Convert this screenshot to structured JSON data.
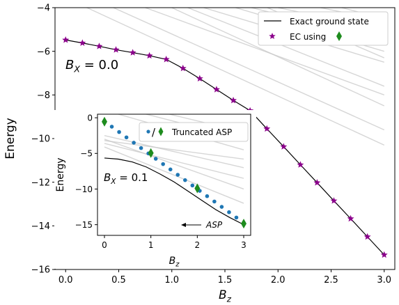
{
  "chart_data": [
    {
      "type": "line",
      "xlabel_main": "B",
      "xlabel_sub": "z",
      "ylabel": "Energy",
      "xlim": [
        -0.1,
        3.1
      ],
      "ylim": [
        -16,
        -4
      ],
      "xticks": [
        0.0,
        0.5,
        1.0,
        1.5,
        2.0,
        2.5,
        3.0
      ],
      "xtick_labels": [
        "0.0",
        "0.5",
        "1.0",
        "1.5",
        "2.0",
        "2.5",
        "3.0"
      ],
      "yticks": [
        -4,
        -6,
        -8,
        -10,
        -12,
        -14,
        -16
      ],
      "ytick_labels": [
        "−4",
        "−6",
        "−8",
        "−10",
        "−12",
        "−14",
        "−16"
      ],
      "annotation": "B_X = 0.0",
      "annotation_parts": {
        "main": "B",
        "sub": "X",
        "rest": " = 0.0"
      },
      "legend": {
        "placement": "upper right",
        "entries": [
          "Exact ground state",
          "EC using"
        ]
      },
      "series": [
        {
          "name": "Exact ground state",
          "style": "line",
          "color": "#000000",
          "x": [
            0.0,
            0.158,
            0.316,
            0.474,
            0.632,
            0.789,
            0.947,
            1.105,
            1.263,
            1.421,
            1.579,
            1.737,
            1.895,
            2.053,
            2.211,
            2.368,
            2.526,
            2.684,
            2.842,
            3.0
          ],
          "y": [
            -5.48,
            -5.62,
            -5.77,
            -5.93,
            -6.06,
            -6.2,
            -6.37,
            -6.78,
            -7.25,
            -7.75,
            -8.25,
            -8.72,
            -9.55,
            -10.37,
            -11.2,
            -12.02,
            -12.85,
            -13.67,
            -14.5,
            -15.33
          ]
        },
        {
          "name": "EC using",
          "style": "marker",
          "marker": "star",
          "color": "#8b008b",
          "x": [
            0.0,
            0.158,
            0.316,
            0.474,
            0.632,
            0.789,
            0.947,
            1.105,
            1.263,
            1.421,
            1.579,
            1.737,
            1.895,
            2.053,
            2.211,
            2.368,
            2.526,
            2.684,
            2.842,
            3.0
          ],
          "y": [
            -5.48,
            -5.62,
            -5.77,
            -5.93,
            -6.06,
            -6.2,
            -6.37,
            -6.78,
            -7.25,
            -7.75,
            -8.25,
            -8.72,
            -9.55,
            -10.37,
            -11.2,
            -12.02,
            -12.85,
            -13.67,
            -14.5,
            -15.33
          ]
        }
      ],
      "background_lines": [
        {
          "x": [
            1.3,
            3.0
          ],
          "y": [
            -4.0,
            -6.5
          ]
        },
        {
          "x": [
            1.6,
            3.0
          ],
          "y": [
            -4.0,
            -6.0
          ]
        },
        {
          "x": [
            2.0,
            3.0
          ],
          "y": [
            -4.0,
            -5.0
          ]
        },
        {
          "x": [
            2.4,
            3.0
          ],
          "y": [
            -4.0,
            -4.6
          ]
        },
        {
          "x": [
            1.0,
            3.0
          ],
          "y": [
            -4.0,
            -8.5
          ]
        },
        {
          "x": [
            1.15,
            3.0
          ],
          "y": [
            -4.0,
            -7.6
          ]
        },
        {
          "x": [
            0.2,
            3.0
          ],
          "y": [
            -4.0,
            -10.3
          ]
        },
        {
          "x": [
            0.45,
            3.0
          ],
          "y": [
            -4.0,
            -9.6
          ]
        },
        {
          "x": [
            0.75,
            3.0
          ],
          "y": [
            -4.0,
            -8.0
          ]
        },
        {
          "x": [
            1.75,
            3.0
          ],
          "y": [
            -4.0,
            -5.5
          ]
        },
        {
          "x": [
            2.6,
            3.0
          ],
          "y": [
            -4.0,
            -4.5
          ]
        },
        {
          "x": [
            1.9,
            3.0
          ],
          "y": [
            -4.0,
            -6.3
          ]
        }
      ],
      "legend_diamond_color": "#1e8c1e"
    },
    {
      "type": "scatter",
      "xlabel_main": "B",
      "xlabel_sub": "z",
      "ylabel": "Energy",
      "xlim": [
        -0.15,
        3.15
      ],
      "ylim": [
        -16.5,
        0.5
      ],
      "xticks": [
        0,
        1,
        2,
        3
      ],
      "xtick_labels": [
        "0",
        "1",
        "2",
        "3"
      ],
      "yticks": [
        0,
        -5,
        -10,
        -15
      ],
      "ytick_labels": [
        "0",
        "−5",
        "−10",
        "−15"
      ],
      "annotation": "B_X = 0.1",
      "annotation_parts": {
        "main": "B",
        "sub": "X",
        "rest": " = 0.1"
      },
      "arrow_text": "ASP",
      "legend": {
        "placement": "upper right",
        "entries": [
          "Truncated ASP"
        ],
        "separator": "/"
      },
      "series": [
        {
          "name": "exact",
          "style": "line",
          "color": "#000000",
          "x": [
            0.0,
            0.3,
            0.6,
            0.9,
            1.2,
            1.5,
            1.8,
            2.1,
            2.4,
            2.7,
            3.0
          ],
          "y": [
            -5.65,
            -5.8,
            -6.2,
            -6.9,
            -7.9,
            -9.0,
            -10.3,
            -11.6,
            -12.9,
            -14.0,
            -15.0
          ]
        },
        {
          "name": "Truncated ASP",
          "style": "marker",
          "marker": "dot",
          "color": "#1f77b4",
          "x": [
            0.0,
            0.158,
            0.316,
            0.474,
            0.632,
            0.789,
            0.947,
            1.105,
            1.263,
            1.421,
            1.579,
            1.737,
            1.895,
            2.053,
            2.211,
            2.368,
            2.526,
            2.684,
            2.842,
            3.0
          ],
          "y": [
            -0.5,
            -1.25,
            -2.0,
            -2.75,
            -3.5,
            -4.25,
            -5.0,
            -5.75,
            -6.5,
            -7.25,
            -8.0,
            -8.75,
            -9.5,
            -10.25,
            -11.0,
            -11.75,
            -12.5,
            -13.25,
            -14.0,
            -14.75
          ]
        },
        {
          "name": "diamonds",
          "style": "marker",
          "marker": "diamond",
          "color": "#1e8c1e",
          "x": [
            0.0,
            1.0,
            2.0,
            3.0
          ],
          "y": [
            -0.55,
            -4.95,
            -9.9,
            -14.85
          ]
        }
      ],
      "background_lines": [
        {
          "x": [
            0.0,
            3.0
          ],
          "y": [
            -3.0,
            -10.0
          ]
        },
        {
          "x": [
            0.0,
            3.0
          ],
          "y": [
            -3.6,
            -8.5
          ]
        },
        {
          "x": [
            0.0,
            3.0
          ],
          "y": [
            -2.5,
            -7.0
          ]
        },
        {
          "x": [
            0.0,
            3.0
          ],
          "y": [
            -3.2,
            -5.8
          ]
        },
        {
          "x": [
            0.3,
            3.0
          ],
          "y": [
            0.5,
            -4.5
          ]
        },
        {
          "x": [
            0.9,
            3.0
          ],
          "y": [
            0.5,
            -3.0
          ]
        },
        {
          "x": [
            1.4,
            3.0
          ],
          "y": [
            0.5,
            -2.0
          ]
        },
        {
          "x": [
            0.0,
            3.0
          ],
          "y": [
            -4.1,
            -12.0
          ]
        }
      ]
    }
  ]
}
